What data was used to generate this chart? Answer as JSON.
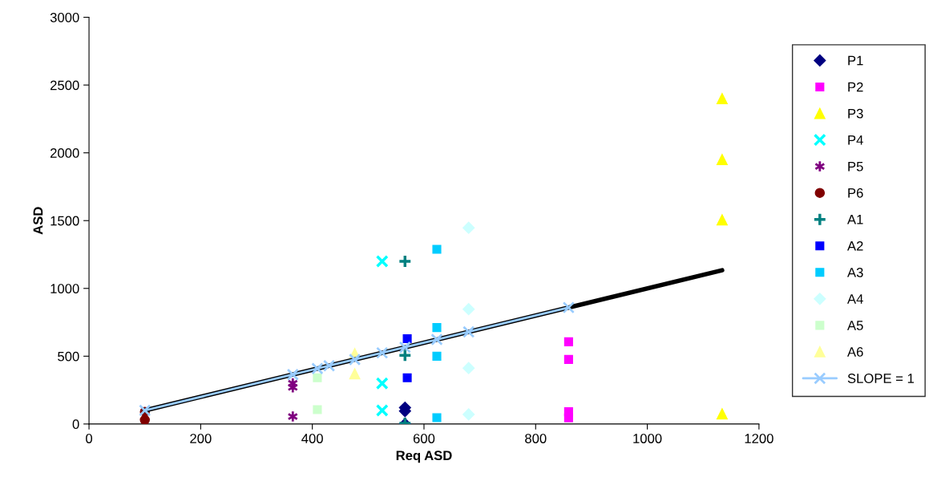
{
  "chart_data": {
    "type": "scatter",
    "xlabel": "Req ASD",
    "ylabel": "ASD",
    "xlim": [
      0,
      1200
    ],
    "xticks": [
      0,
      200,
      400,
      600,
      800,
      1000,
      1200
    ],
    "ylim": [
      0,
      3000
    ],
    "yticks": [
      0,
      500,
      1000,
      1500,
      2000,
      2500,
      3000
    ],
    "grid": false,
    "legend": "right",
    "series": [
      {
        "name": "P1",
        "color": "#000080",
        "marker": "diamond",
        "x": [
          566,
          566,
          566
        ],
        "values": [
          120,
          95,
          0
        ]
      },
      {
        "name": "P2",
        "color": "#ff00ff",
        "marker": "square",
        "x": [
          859,
          859,
          859,
          859
        ],
        "values": [
          606,
          476,
          90,
          45
        ]
      },
      {
        "name": "P3",
        "color": "#ffff00",
        "marker": "triangle",
        "x": [
          1134,
          1134,
          1134,
          1134
        ],
        "values": [
          2400,
          1950,
          1505,
          75
        ]
      },
      {
        "name": "P4",
        "color": "#00ffff",
        "marker": "cross",
        "x": [
          525,
          525,
          525
        ],
        "values": [
          1200,
          300,
          100
        ]
      },
      {
        "name": "P5",
        "color": "#800080",
        "marker": "cross",
        "x": [
          365,
          365,
          365
        ],
        "values": [
          300,
          270,
          55
        ]
      },
      {
        "name": "P6",
        "color": "#800000",
        "marker": "circle",
        "x": [
          100,
          100
        ],
        "values": [
          90,
          30
        ]
      },
      {
        "name": "A1",
        "color": "#008080",
        "marker": "cross",
        "x": [
          566,
          566,
          566
        ],
        "values": [
          1200,
          506,
          6
        ]
      },
      {
        "name": "A2",
        "color": "#0000ff",
        "marker": "square",
        "x": [
          570,
          570
        ],
        "values": [
          629,
          341
        ]
      },
      {
        "name": "A3",
        "color": "#00ccff",
        "marker": "square",
        "x": [
          623,
          623,
          623,
          623
        ],
        "values": [
          1288,
          711,
          500,
          47
        ]
      },
      {
        "name": "A4",
        "color": "#ccffff",
        "marker": "diamond",
        "x": [
          680,
          680,
          680,
          680
        ],
        "values": [
          1447,
          847,
          412,
          71
        ]
      },
      {
        "name": "A5",
        "color": "#ccffcc",
        "marker": "square",
        "x": [
          409,
          409
        ],
        "values": [
          341,
          106
        ]
      },
      {
        "name": "A6",
        "color": "#ffff99",
        "marker": "triangle",
        "x": [
          476,
          476
        ],
        "values": [
          520,
          370
        ]
      },
      {
        "name": "SLOPE = 1",
        "type": "line",
        "color": "#99ccff",
        "marker": "cross",
        "x": [
          100,
          365,
          409,
          430,
          476,
          525,
          566,
          623,
          680,
          859
        ],
        "values": [
          100,
          365,
          409,
          430,
          476,
          525,
          566,
          623,
          680,
          859
        ]
      },
      {
        "type": "line",
        "color": "#000000",
        "x": [
          100,
          1134
        ],
        "values": [
          100,
          1134
        ]
      }
    ]
  }
}
